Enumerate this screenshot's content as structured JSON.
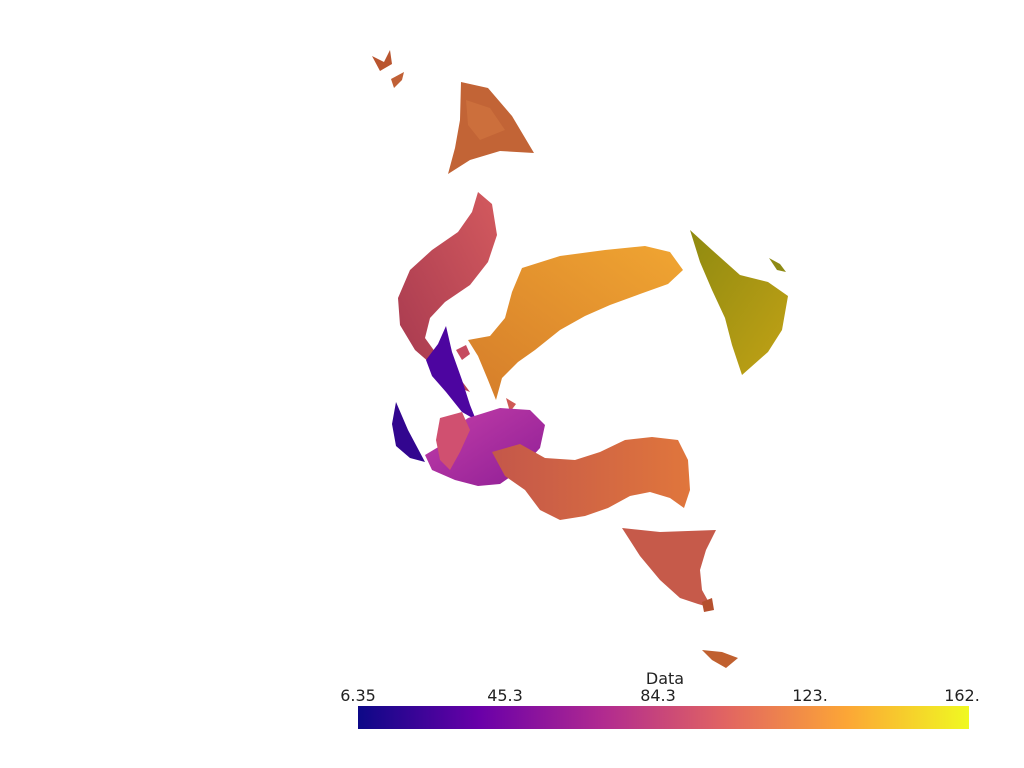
{
  "colorbar": {
    "title": "Data",
    "ticks": [
      "6.35",
      "45.3",
      "84.3",
      "123.",
      "162."
    ],
    "range": [
      6.35,
      162.0
    ],
    "colormap": "plasma",
    "colormap_stops": [
      "#0d0887",
      "#6a00a8",
      "#b12a90",
      "#e16462",
      "#fca636",
      "#f0f921"
    ]
  },
  "surfaces": {
    "colors": {
      "deep_blue": "#2e0596",
      "indigo": "#4a049e",
      "magenta": "#b42e9c",
      "rose": "#c64b60",
      "salmon": "#cf5a55",
      "coral": "#d66a45",
      "burnt_orange": "#bd5a34",
      "orange": "#e69028",
      "olive": "#a79a10"
    }
  }
}
